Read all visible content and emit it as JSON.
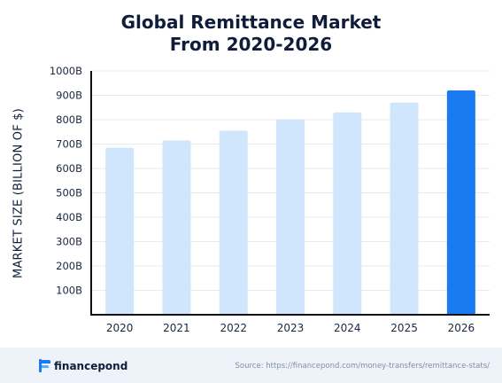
{
  "chart_data": {
    "type": "bar",
    "title_lines": [
      "Global Remittance Market",
      "From 2020-2026"
    ],
    "ylabel": "MARKET SIZE (BILLION OF $)",
    "xlabel": "",
    "categories": [
      "2020",
      "2021",
      "2022",
      "2023",
      "2024",
      "2025",
      "2026"
    ],
    "values": [
      685,
      715,
      755,
      800,
      830,
      870,
      920
    ],
    "ylim": [
      0,
      1000
    ],
    "yticks": [
      {
        "value": 100,
        "label": "100B"
      },
      {
        "value": 200,
        "label": "200B"
      },
      {
        "value": 300,
        "label": "300B"
      },
      {
        "value": 400,
        "label": "400B"
      },
      {
        "value": 500,
        "label": "500B"
      },
      {
        "value": 600,
        "label": "600B"
      },
      {
        "value": 700,
        "label": "700B"
      },
      {
        "value": 800,
        "label": "800B"
      },
      {
        "value": 900,
        "label": "900B"
      },
      {
        "value": 1000,
        "label": "1000B"
      }
    ],
    "highlight_index": 6,
    "grid": true,
    "colors": {
      "bar": "#cfe6fc",
      "highlight": "#1a7af0",
      "axis": "#111111",
      "grid": "#e6e9ee"
    }
  },
  "footer": {
    "brand": "financepond",
    "source": "Source: https://financepond.com/money-transfers/remittance-stats/"
  }
}
